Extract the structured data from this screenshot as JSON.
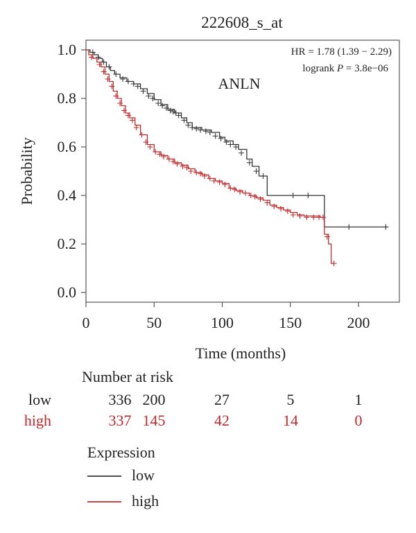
{
  "chart_data": {
    "type": "line",
    "title": "222608_s_at",
    "annotation_gene": "ANLN",
    "stats": {
      "hr_text": "HR = 1.78 (1.39 − 2.29)",
      "logrank_prefix": "logrank ",
      "logrank_p_symbol": "P",
      "logrank_value_text": " = 3.8e−06"
    },
    "xlabel": "Time (months)",
    "ylabel": "Probability",
    "xlim": [
      0,
      230
    ],
    "ylim": [
      -0.04,
      1.04
    ],
    "xticks": [
      0,
      50,
      100,
      150,
      200
    ],
    "xtick_labels": [
      "0",
      "50",
      "100",
      "150",
      "200"
    ],
    "yticks": [
      0.0,
      0.2,
      0.4,
      0.6,
      0.8,
      1.0
    ],
    "ytick_labels": [
      "0.0",
      "0.2",
      "0.4",
      "0.6",
      "0.8",
      "1.0"
    ],
    "series": [
      {
        "name": "low",
        "color": "#333333",
        "steps": [
          [
            0,
            1.0
          ],
          [
            3,
            0.99
          ],
          [
            6,
            0.98
          ],
          [
            9,
            0.965
          ],
          [
            12,
            0.95
          ],
          [
            15,
            0.93
          ],
          [
            18,
            0.915
          ],
          [
            21,
            0.9
          ],
          [
            25,
            0.885
          ],
          [
            30,
            0.87
          ],
          [
            35,
            0.86
          ],
          [
            40,
            0.84
          ],
          [
            45,
            0.82
          ],
          [
            50,
            0.795
          ],
          [
            55,
            0.775
          ],
          [
            60,
            0.755
          ],
          [
            65,
            0.74
          ],
          [
            70,
            0.72
          ],
          [
            74,
            0.7
          ],
          [
            78,
            0.68
          ],
          [
            85,
            0.67
          ],
          [
            92,
            0.66
          ],
          [
            98,
            0.64
          ],
          [
            102,
            0.625
          ],
          [
            108,
            0.61
          ],
          [
            112,
            0.59
          ],
          [
            118,
            0.55
          ],
          [
            122,
            0.52
          ],
          [
            127,
            0.48
          ],
          [
            133,
            0.4
          ],
          [
            175,
            0.4
          ],
          [
            175,
            0.27
          ],
          [
            222,
            0.27
          ]
        ],
        "censors": [
          [
            5,
            0.99
          ],
          [
            9,
            0.97
          ],
          [
            13,
            0.95
          ],
          [
            17,
            0.93
          ],
          [
            22,
            0.9
          ],
          [
            27,
            0.88
          ],
          [
            31,
            0.87
          ],
          [
            35,
            0.86
          ],
          [
            38,
            0.85
          ],
          [
            42,
            0.83
          ],
          [
            46,
            0.81
          ],
          [
            49,
            0.8
          ],
          [
            53,
            0.78
          ],
          [
            56,
            0.77
          ],
          [
            59,
            0.76
          ],
          [
            62,
            0.75
          ],
          [
            64,
            0.745
          ],
          [
            66,
            0.74
          ],
          [
            68,
            0.73
          ],
          [
            72,
            0.71
          ],
          [
            75,
            0.69
          ],
          [
            78,
            0.68
          ],
          [
            81,
            0.675
          ],
          [
            84,
            0.67
          ],
          [
            88,
            0.665
          ],
          [
            91,
            0.66
          ],
          [
            95,
            0.645
          ],
          [
            99,
            0.635
          ],
          [
            103,
            0.62
          ],
          [
            106,
            0.61
          ],
          [
            110,
            0.6
          ],
          [
            114,
            0.575
          ],
          [
            120,
            0.535
          ],
          [
            125,
            0.5
          ],
          [
            130,
            0.48
          ],
          [
            152,
            0.4
          ],
          [
            163,
            0.4
          ],
          [
            193,
            0.27
          ],
          [
            220,
            0.27
          ]
        ]
      },
      {
        "name": "high",
        "color": "#c0292b",
        "steps": [
          [
            0,
            1.0
          ],
          [
            2,
            0.98
          ],
          [
            5,
            0.965
          ],
          [
            8,
            0.95
          ],
          [
            11,
            0.93
          ],
          [
            14,
            0.9
          ],
          [
            17,
            0.87
          ],
          [
            20,
            0.83
          ],
          [
            23,
            0.8
          ],
          [
            26,
            0.77
          ],
          [
            29,
            0.74
          ],
          [
            32,
            0.72
          ],
          [
            36,
            0.69
          ],
          [
            40,
            0.65
          ],
          [
            45,
            0.61
          ],
          [
            50,
            0.58
          ],
          [
            55,
            0.565
          ],
          [
            60,
            0.55
          ],
          [
            65,
            0.535
          ],
          [
            70,
            0.525
          ],
          [
            75,
            0.51
          ],
          [
            80,
            0.495
          ],
          [
            85,
            0.485
          ],
          [
            90,
            0.47
          ],
          [
            95,
            0.46
          ],
          [
            100,
            0.45
          ],
          [
            105,
            0.43
          ],
          [
            110,
            0.42
          ],
          [
            115,
            0.41
          ],
          [
            120,
            0.4
          ],
          [
            125,
            0.39
          ],
          [
            130,
            0.38
          ],
          [
            135,
            0.36
          ],
          [
            140,
            0.35
          ],
          [
            145,
            0.34
          ],
          [
            150,
            0.33
          ],
          [
            155,
            0.32
          ],
          [
            160,
            0.315
          ],
          [
            172,
            0.31
          ],
          [
            175,
            0.31
          ],
          [
            175,
            0.24
          ],
          [
            178,
            0.2
          ],
          [
            180,
            0.12
          ],
          [
            182,
            0.12
          ]
        ],
        "censors": [
          [
            4,
            0.97
          ],
          [
            10,
            0.94
          ],
          [
            13,
            0.91
          ],
          [
            16,
            0.88
          ],
          [
            19,
            0.85
          ],
          [
            22,
            0.81
          ],
          [
            25,
            0.78
          ],
          [
            28,
            0.75
          ],
          [
            31,
            0.73
          ],
          [
            34,
            0.71
          ],
          [
            37,
            0.68
          ],
          [
            41,
            0.65
          ],
          [
            44,
            0.62
          ],
          [
            47,
            0.6
          ],
          [
            51,
            0.58
          ],
          [
            54,
            0.57
          ],
          [
            57,
            0.56
          ],
          [
            61,
            0.55
          ],
          [
            64,
            0.54
          ],
          [
            67,
            0.53
          ],
          [
            71,
            0.52
          ],
          [
            74,
            0.515
          ],
          [
            77,
            0.5
          ],
          [
            81,
            0.495
          ],
          [
            84,
            0.49
          ],
          [
            87,
            0.48
          ],
          [
            91,
            0.47
          ],
          [
            94,
            0.46
          ],
          [
            98,
            0.455
          ],
          [
            102,
            0.445
          ],
          [
            106,
            0.43
          ],
          [
            109,
            0.425
          ],
          [
            113,
            0.415
          ],
          [
            117,
            0.41
          ],
          [
            121,
            0.4
          ],
          [
            124,
            0.395
          ],
          [
            128,
            0.385
          ],
          [
            133,
            0.37
          ],
          [
            138,
            0.355
          ],
          [
            143,
            0.345
          ],
          [
            148,
            0.335
          ],
          [
            152,
            0.32
          ],
          [
            157,
            0.315
          ],
          [
            162,
            0.31
          ],
          [
            167,
            0.31
          ],
          [
            171,
            0.31
          ],
          [
            174,
            0.31
          ],
          [
            177,
            0.23
          ],
          [
            182,
            0.12
          ]
        ]
      }
    ],
    "number_at_risk": {
      "title": "Number at risk",
      "rows": [
        {
          "label": "low",
          "color": "#222222",
          "values": [
            "336",
            "200",
            "27",
            "5",
            "1"
          ]
        },
        {
          "label": "high",
          "color": "#c0292b",
          "values": [
            "337",
            "145",
            "42",
            "14",
            "0"
          ]
        }
      ]
    },
    "legend": {
      "title": "Expression",
      "placement": "bottom",
      "items": [
        {
          "label": "low",
          "color": "#333333"
        },
        {
          "label": "high",
          "color": "#c0292b"
        }
      ]
    }
  }
}
